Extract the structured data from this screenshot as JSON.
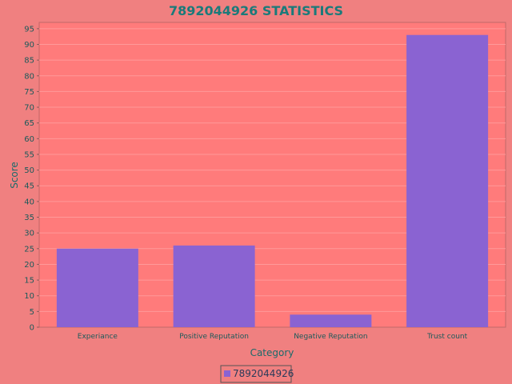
{
  "chart_data": {
    "type": "bar",
    "title": "7892044926 STATISTICS",
    "xlabel": "Category",
    "ylabel": "Score",
    "categories": [
      "Experiance",
      "Positive Reputation",
      "Negative Reputation",
      "Trust count"
    ],
    "series": [
      {
        "name": "7892044926",
        "values": [
          25,
          26,
          4,
          93
        ]
      }
    ],
    "ylim": [
      0,
      97
    ],
    "yticks": [
      0,
      5,
      10,
      15,
      20,
      25,
      30,
      35,
      40,
      45,
      50,
      55,
      60,
      65,
      70,
      75,
      80,
      85,
      90,
      95
    ],
    "grid": true,
    "legend_position": "bottom-center",
    "colors": {
      "page_background": "#f08080",
      "plot_background": "#ff7b7b",
      "bar": "#8a63d2",
      "title": "#1a7a7a"
    }
  }
}
